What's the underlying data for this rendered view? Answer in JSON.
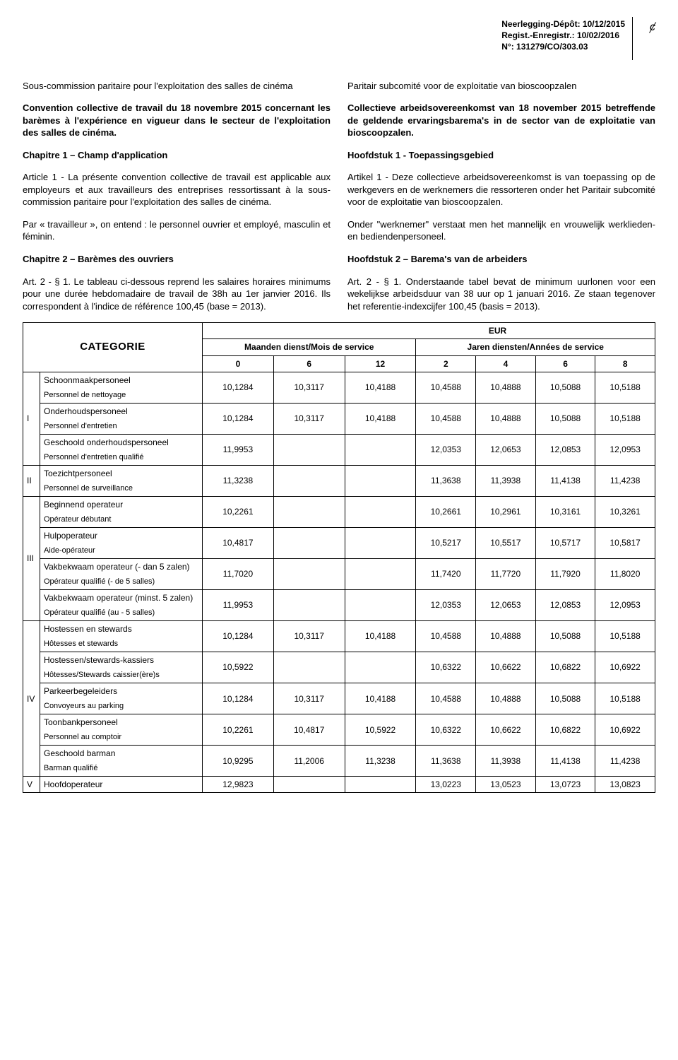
{
  "deposit": {
    "line1": "Neerlegging-Dépôt: 10/12/2015",
    "line2": "Regist.-Enregistr.: 10/02/2016",
    "line3": "N°: 131279/CO/303.03"
  },
  "curl_mark": "ȼ",
  "intro": {
    "fr_title": "Sous-commission paritaire pour l'exploitation des salles de cinéma",
    "nl_title": "Paritair subcomité voor de exploitatie van bioscoopzalen",
    "fr_conv": "Convention collective de travail du 18 novembre 2015 concernant les barèmes à l'expérience en vigueur dans le secteur de l'exploitation des salles de cinéma.",
    "nl_conv": "Collectieve arbeidsovereenkomst van 18 november 2015 betreffende de geldende ervaringsbarema's in de sector van de exploitatie van bioscoopzalen.",
    "fr_ch1": "Chapitre 1 – Champ d'application",
    "nl_ch1": "Hoofdstuk 1 - Toepassingsgebied",
    "fr_art1": "Article 1 - La présente convention collective de travail est applicable aux employeurs et aux travailleurs des entreprises ressortissant à la sous-commission paritaire pour l'exploitation des salles de cinéma.",
    "nl_art1": "Artikel 1 - Deze collectieve arbeidsovereenkomst is van toepassing op de werkgevers en de werknemers die ressorteren onder het Paritair subcomité voor de exploitatie van bioscoopzalen.",
    "fr_trav": "Par « travailleur », on entend : le personnel ouvrier et employé, masculin et féminin.",
    "nl_trav": "Onder \"werknemer\" verstaat men het mannelijk en vrouwelijk werklieden- en bediendenpersoneel.",
    "fr_ch2": "Chapitre 2 – Barèmes des ouvriers",
    "nl_ch2": "Hoofdstuk 2 – Barema's van de arbeiders",
    "fr_art2": "Art. 2 - § 1. Le tableau ci-dessous reprend les salaires horaires minimums pour une durée hebdomadaire de travail de 38h au 1er janvier 2016. Ils correspondent à l'indice de référence 100,45 (base = 2013).",
    "nl_art2": "Art. 2 - § 1. Onderstaande tabel bevat de minimum uurlonen voor een wekelijkse arbeidsduur van 38 uur op 1 januari 2016. Ze staan tegenover het referentie-indexcijfer 100,45 (basis = 2013)."
  },
  "table": {
    "category_label": "CATEGORIE",
    "eur_label": "EUR",
    "months_label": "Maanden dienst/Mois de service",
    "years_label": "Jaren diensten/Années de service",
    "month_cols": [
      "0",
      "6",
      "12"
    ],
    "year_cols": [
      "2",
      "4",
      "6",
      "8"
    ],
    "groups": [
      {
        "cat": "I",
        "rows": [
          {
            "nl": "Schoonmaakpersoneel",
            "fr": "Personnel de nettoyage",
            "months": [
              "10,1284",
              "10,3117",
              "10,4188"
            ],
            "years": [
              "10,4588",
              "10,4888",
              "10,5088",
              "10,5188"
            ]
          },
          {
            "nl": "Onderhoudspersoneel",
            "fr": "Personnel d'entretien",
            "months": [
              "10,1284",
              "10,3117",
              "10,4188"
            ],
            "years": [
              "10,4588",
              "10,4888",
              "10,5088",
              "10,5188"
            ]
          },
          {
            "nl": "Geschoold onderhoudspersoneel",
            "fr": "Personnel d'entretien qualifié",
            "months": [
              "11,9953",
              "",
              ""
            ],
            "years": [
              "12,0353",
              "12,0653",
              "12,0853",
              "12,0953"
            ]
          }
        ]
      },
      {
        "cat": "II",
        "rows": [
          {
            "nl": "Toezichtpersoneel",
            "fr": "Personnel de surveillance",
            "months": [
              "11,3238",
              "",
              ""
            ],
            "years": [
              "11,3638",
              "11,3938",
              "11,4138",
              "11,4238"
            ]
          }
        ]
      },
      {
        "cat": "III",
        "rows": [
          {
            "nl": "Beginnend operateur",
            "fr": "Opérateur débutant",
            "months": [
              "10,2261",
              "",
              ""
            ],
            "years": [
              "10,2661",
              "10,2961",
              "10,3161",
              "10,3261"
            ]
          },
          {
            "nl": "Hulpoperateur",
            "fr": "Aide-opérateur",
            "months": [
              "10,4817",
              "",
              ""
            ],
            "years": [
              "10,5217",
              "10,5517",
              "10,5717",
              "10,5817"
            ]
          },
          {
            "nl": "Vakbekwaam operateur (- dan 5 zalen)",
            "fr": "Opérateur qualifié (- de 5 salles)",
            "months": [
              "11,7020",
              "",
              ""
            ],
            "years": [
              "11,7420",
              "11,7720",
              "11,7920",
              "11,8020"
            ]
          },
          {
            "nl": "Vakbekwaam operateur (minst. 5 zalen)",
            "fr": "Opérateur qualifié (au - 5 salles)",
            "months": [
              "11,9953",
              "",
              ""
            ],
            "years": [
              "12,0353",
              "12,0653",
              "12,0853",
              "12,0953"
            ]
          }
        ]
      },
      {
        "cat": "IV",
        "rows": [
          {
            "nl": "Hostessen en stewards",
            "fr": "Hôtesses et stewards",
            "months": [
              "10,1284",
              "10,3117",
              "10,4188"
            ],
            "years": [
              "10,4588",
              "10,4888",
              "10,5088",
              "10,5188"
            ]
          },
          {
            "nl": "Hostessen/stewards-kassiers",
            "fr": "Hôtesses/Stewards caissier(ère)s",
            "months": [
              "10,5922",
              "",
              ""
            ],
            "years": [
              "10,6322",
              "10,6622",
              "10,6822",
              "10,6922"
            ]
          },
          {
            "nl": "Parkeerbegeleiders",
            "fr": "Convoyeurs au parking",
            "months": [
              "10,1284",
              "10,3117",
              "10,4188"
            ],
            "years": [
              "10,4588",
              "10,4888",
              "10,5088",
              "10,5188"
            ]
          },
          {
            "nl": "Toonbankpersoneel",
            "fr": "Personnel au comptoir",
            "months": [
              "10,2261",
              "10,4817",
              "10,5922"
            ],
            "years": [
              "10,6322",
              "10,6622",
              "10,6822",
              "10,6922"
            ]
          },
          {
            "nl": "Geschoold barman",
            "fr": "Barman qualifié",
            "months": [
              "10,9295",
              "11,2006",
              "11,3238"
            ],
            "years": [
              "11,3638",
              "11,3938",
              "11,4138",
              "11,4238"
            ]
          }
        ]
      },
      {
        "cat": "V",
        "rows": [
          {
            "nl": "Hoofdoperateur",
            "fr": "",
            "months": [
              "12,9823",
              "",
              ""
            ],
            "years": [
              "13,0223",
              "13,0523",
              "13,0723",
              "13,0823"
            ]
          }
        ]
      }
    ]
  }
}
